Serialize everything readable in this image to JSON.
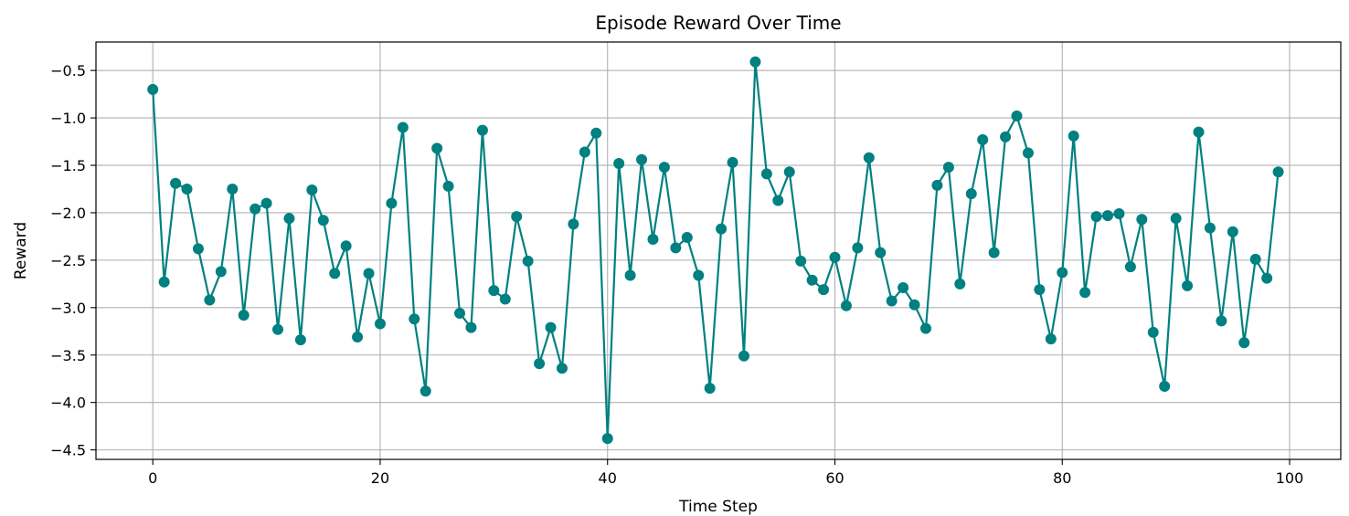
{
  "chart_data": {
    "type": "line",
    "title": "Episode Reward Over Time",
    "xlabel": "Time Step",
    "ylabel": "Reward",
    "xlim": [
      -5,
      104.5
    ],
    "ylim": [
      -4.6,
      -0.2
    ],
    "xticks": [
      0,
      20,
      40,
      60,
      80,
      100
    ],
    "xtick_labels": [
      "0",
      "20",
      "40",
      "60",
      "80",
      "100"
    ],
    "yticks": [
      -0.5,
      -1.0,
      -1.5,
      -2.0,
      -2.5,
      -3.0,
      -3.5,
      -4.0,
      -4.5
    ],
    "ytick_labels": [
      "−0.5",
      "−1.0",
      "−1.5",
      "−2.0",
      "−2.5",
      "−3.0",
      "−3.5",
      "−4.0",
      "−4.5"
    ],
    "grid": true,
    "line_color": "#008080",
    "marker": "circle",
    "series": [
      {
        "x": [
          0,
          1,
          2,
          3,
          4,
          5,
          6,
          7,
          8,
          9,
          10,
          11,
          12,
          13,
          14,
          15,
          16,
          17,
          18,
          19,
          20,
          21,
          22,
          23,
          24,
          25,
          26,
          27,
          28,
          29,
          30,
          31,
          32,
          33,
          34,
          35,
          36,
          37,
          38,
          39,
          40,
          41,
          42,
          43,
          44,
          45,
          46,
          47,
          48,
          49,
          50,
          51,
          52,
          53,
          54,
          55,
          56,
          57,
          58,
          59,
          60,
          61,
          62,
          63,
          64,
          65,
          66,
          67,
          68,
          69,
          70,
          71,
          72,
          73,
          74,
          75,
          76,
          77,
          78,
          79,
          80,
          81,
          82,
          83,
          84,
          85,
          86,
          87,
          88,
          89,
          90,
          91,
          92,
          93,
          94,
          95,
          96,
          97,
          98,
          99
        ],
        "values": [
          -0.7,
          -2.73,
          -1.69,
          -1.75,
          -2.38,
          -2.92,
          -2.62,
          -1.75,
          -3.08,
          -1.96,
          -1.9,
          -3.23,
          -2.06,
          -3.34,
          -1.76,
          -2.08,
          -2.64,
          -2.35,
          -3.31,
          -2.64,
          -3.17,
          -1.9,
          -1.1,
          -3.12,
          -3.88,
          -1.32,
          -1.72,
          -3.06,
          -3.21,
          -1.13,
          -2.82,
          -2.91,
          -2.04,
          -2.51,
          -3.59,
          -3.21,
          -3.64,
          -2.12,
          -1.36,
          -1.16,
          -4.38,
          -1.48,
          -2.66,
          -1.44,
          -2.28,
          -1.52,
          -2.37,
          -2.26,
          -2.66,
          -3.85,
          -2.17,
          -1.47,
          -3.51,
          -0.41,
          -1.59,
          -1.87,
          -1.57,
          -2.51,
          -2.71,
          -2.81,
          -2.47,
          -2.98,
          -2.37,
          -1.42,
          -2.42,
          -2.93,
          -2.79,
          -2.97,
          -3.22,
          -1.71,
          -1.52,
          -2.75,
          -1.8,
          -1.23,
          -2.42,
          -1.2,
          -0.98,
          -1.37,
          -2.81,
          -3.33,
          -2.63,
          -1.19,
          -2.84,
          -2.04,
          -2.03,
          -2.01,
          -2.57,
          -2.07,
          -3.26,
          -3.83,
          -2.06,
          -2.77,
          -1.15,
          -2.16,
          -3.14,
          -2.2,
          -3.37,
          -2.49,
          -2.69,
          -1.57
        ]
      }
    ]
  }
}
